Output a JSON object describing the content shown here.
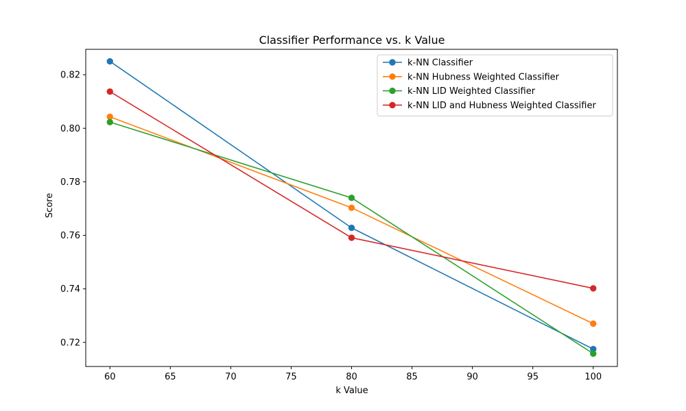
{
  "chart_data": {
    "type": "line",
    "title": "Classifier Performance vs. k Value",
    "xlabel": "k Value",
    "ylabel": "Score",
    "x": [
      60,
      80,
      100
    ],
    "xlim": [
      58,
      102
    ],
    "ylim": [
      0.711,
      0.8295
    ],
    "xticks": [
      60,
      65,
      70,
      75,
      80,
      85,
      90,
      95,
      100
    ],
    "xtick_labels": [
      "60",
      "65",
      "70",
      "75",
      "80",
      "85",
      "90",
      "95",
      "100"
    ],
    "yticks": [
      0.72,
      0.74,
      0.76,
      0.78,
      0.8,
      0.82
    ],
    "ytick_labels": [
      "0.72",
      "0.74",
      "0.76",
      "0.78",
      "0.80",
      "0.82"
    ],
    "grid": false,
    "legend_position": "top-right",
    "marker": "circle",
    "series": [
      {
        "name": "k-NN Classifier",
        "color": "#1f77b4",
        "values": [
          0.825,
          0.7628,
          0.7175
        ]
      },
      {
        "name": "k-NN Hubness Weighted Classifier",
        "color": "#ff7f0e",
        "values": [
          0.8043,
          0.7703,
          0.727
        ]
      },
      {
        "name": "k-NN LID Weighted Classifier",
        "color": "#2ca02c",
        "values": [
          0.8023,
          0.774,
          0.7158
        ]
      },
      {
        "name": "k-NN LID and Hubness Weighted Classifier",
        "color": "#d62728",
        "values": [
          0.8137,
          0.7591,
          0.7402
        ]
      }
    ]
  }
}
